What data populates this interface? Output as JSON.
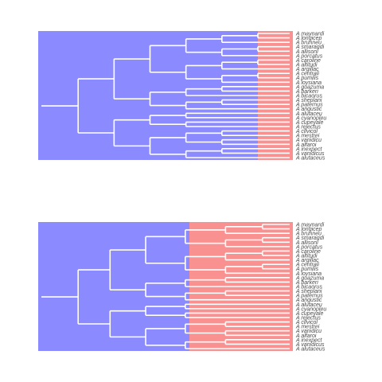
{
  "colors": {
    "ancestral": "#8b8bff",
    "derived": "#fa9191",
    "branch": "#ffffff",
    "label": "#4a4a4a"
  },
  "taxa": [
    "A maynardi",
    "A longicep",
    "A brunneu",
    "A smaragdi",
    "A allisoni",
    "A porcatus",
    "A caroline",
    "A altitudi",
    "A argillac",
    "A centrali",
    "A pumilis",
    "A loysiana",
    "A guazuma",
    "A barkeri",
    "A bicaorus",
    "A sheplani",
    "A paternus",
    "A angustic",
    "A alutaceu",
    "A cyanopleu",
    "A cupeyale",
    "A rejectus",
    "A clivicol",
    "A mestrei",
    "A vanidicu",
    "A alfaroi",
    "A inexpect",
    "A vanidicus",
    "A alutaceus"
  ],
  "panels": [
    {
      "name": "top",
      "shift_label": ""
    },
    {
      "name": "bottom",
      "shift_label": ""
    }
  ]
}
